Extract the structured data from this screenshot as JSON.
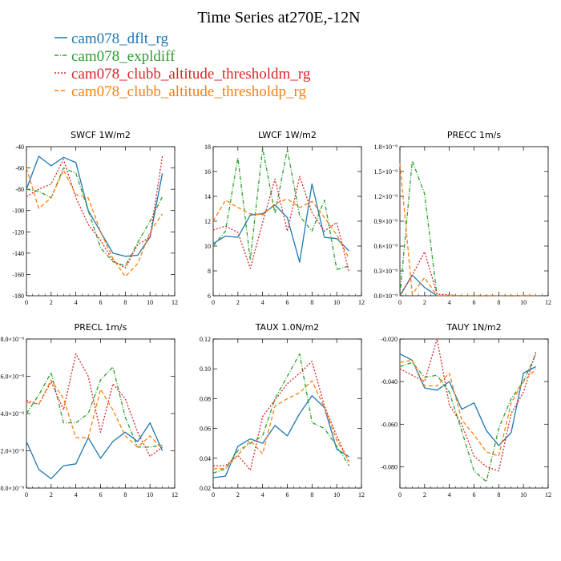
{
  "title": "Time Series at270E,-12N",
  "colors": {
    "dflt": "#1f77b4",
    "expl": "#2ca02c",
    "thm": "#d62728",
    "thp": "#ff7f0e"
  },
  "legend": [
    {
      "label": "cam078_dflt_rg",
      "color": "#1f77b4",
      "dash": "solid"
    },
    {
      "label": "cam078_expldiff",
      "color": "#2ca02c",
      "dash": "dashdot"
    },
    {
      "label": "cam078_clubb_altitude_thresholdm_rg",
      "color": "#d62728",
      "dash": "dotted"
    },
    {
      "label": "cam078_clubb_altitude_thresholdp_rg",
      "color": "#ff7f0e",
      "dash": "dashed"
    }
  ],
  "chart_data": [
    {
      "type": "line",
      "title": "SWCF  1W/m2",
      "x": [
        0,
        1,
        2,
        3,
        4,
        5,
        6,
        7,
        8,
        9,
        10,
        11
      ],
      "xlim": [
        0,
        12
      ],
      "xticks": [
        0,
        2,
        4,
        6,
        8,
        10,
        12
      ],
      "ylim": [
        -180,
        -40
      ],
      "yticks": [
        -180,
        -160,
        -140,
        -120,
        -100,
        -80,
        -60,
        -40
      ],
      "yticklabels": [
        "-180",
        "-160",
        "-140",
        "-120",
        "-100",
        "-80",
        "-60",
        "-40"
      ],
      "series": [
        {
          "name": "cam078_dflt_rg",
          "values": [
            -80,
            -49,
            -58,
            -50,
            -55,
            -100,
            -120,
            -140,
            -143,
            -142,
            -125,
            -65
          ]
        },
        {
          "name": "cam078_expldiff",
          "values": [
            -80,
            -82,
            -88,
            -60,
            -65,
            -100,
            -135,
            -148,
            -152,
            -130,
            -110,
            -87
          ]
        },
        {
          "name": "cam078_clubb_altitude_thresholdm_rg",
          "values": [
            -87,
            -80,
            -75,
            -52,
            -88,
            -113,
            -128,
            -147,
            -154,
            -132,
            -125,
            -49
          ]
        },
        {
          "name": "cam078_clubb_altitude_thresholdp_rg",
          "values": [
            -60,
            -98,
            -88,
            -62,
            -85,
            -88,
            -120,
            -145,
            -162,
            -150,
            -120,
            -103
          ]
        }
      ]
    },
    {
      "type": "line",
      "title": "LWCF  1W/m2",
      "x": [
        0,
        1,
        2,
        3,
        4,
        5,
        6,
        7,
        8,
        9,
        10,
        11
      ],
      "xlim": [
        0,
        12
      ],
      "xticks": [
        0,
        2,
        4,
        6,
        8,
        10,
        12
      ],
      "ylim": [
        6,
        18
      ],
      "yticks": [
        6,
        8,
        10,
        12,
        14,
        16,
        18
      ],
      "yticklabels": [
        "6",
        "8",
        "10",
        "12",
        "14",
        "16",
        "18"
      ],
      "series": [
        {
          "name": "cam078_dflt_rg",
          "values": [
            10.2,
            10.8,
            10.7,
            12.5,
            12.6,
            13.3,
            12.3,
            8.7,
            15.0,
            10.7,
            10.6,
            9.6
          ]
        },
        {
          "name": "cam078_expldiff",
          "values": [
            10.0,
            11.2,
            17.1,
            8.9,
            17.9,
            12.6,
            17.8,
            12.4,
            11.2,
            13.7,
            8.1,
            8.4
          ]
        },
        {
          "name": "cam078_clubb_altitude_thresholdm_rg",
          "values": [
            11.3,
            11.6,
            11.1,
            8.2,
            11.9,
            15.4,
            11.2,
            15.6,
            12.7,
            11.2,
            11.9,
            7.9
          ]
        },
        {
          "name": "cam078_clubb_altitude_thresholdp_rg",
          "values": [
            12.0,
            13.7,
            13.1,
            12.6,
            12.5,
            13.4,
            13.8,
            13.1,
            13.6,
            12.3,
            10.9,
            9.0
          ]
        }
      ]
    },
    {
      "type": "line",
      "title": "PRECC  1m/s",
      "x": [
        0,
        1,
        2,
        3,
        4,
        5,
        6,
        7,
        8,
        9,
        10,
        11
      ],
      "xlim": [
        0,
        12
      ],
      "xticks": [
        0,
        2,
        4,
        6,
        8,
        10,
        12
      ],
      "ylim": [
        0,
        1.8e-09
      ],
      "yticks": [
        0,
        3e-10,
        6e-10,
        9e-10,
        1.2e-09,
        1.5e-09,
        1.8e-09
      ],
      "yticklabels": [
        "0.0×10⁻⁹",
        "0.3×10⁻⁹",
        "0.6×10⁻⁹",
        "0.9×10⁻⁹",
        "1.2×10⁻⁹",
        "1.5×10⁻⁹",
        "1.8×10⁻⁹"
      ],
      "series": [
        {
          "name": "cam078_dflt_rg",
          "values": [
            0,
            2.5e-10,
            1e-10,
            0,
            0,
            0,
            0,
            0,
            0,
            0,
            0,
            0
          ]
        },
        {
          "name": "cam078_expldiff",
          "values": [
            0,
            1.63e-09,
            1.23e-09,
            0,
            0,
            0,
            0,
            0,
            0,
            0,
            0,
            0
          ]
        },
        {
          "name": "cam078_clubb_altitude_thresholdm_rg",
          "values": [
            0,
            2.5e-10,
            5.3e-10,
            2e-11,
            1e-11,
            0,
            0,
            0,
            0,
            0,
            0,
            0
          ]
        },
        {
          "name": "cam078_clubb_altitude_thresholdp_rg",
          "values": [
            1.6e-09,
            2e-11,
            2.2e-10,
            0,
            0,
            0,
            0,
            0,
            0,
            0,
            0,
            0
          ]
        }
      ]
    },
    {
      "type": "line",
      "title": "PRECL  1m/s",
      "x": [
        0,
        1,
        2,
        3,
        4,
        5,
        6,
        7,
        8,
        9,
        10,
        11
      ],
      "xlim": [
        0,
        12
      ],
      "xticks": [
        0,
        2,
        4,
        6,
        8,
        10,
        12
      ],
      "ylim": [
        0,
        8e-09
      ],
      "yticks": [
        0,
        2e-09,
        4e-09,
        6e-09,
        8e-09
      ],
      "yticklabels": [
        "0.0×10⁻⁹",
        "2.0×10⁻⁹",
        "4.0×10⁻⁹",
        "6.0×10⁻⁹",
        "8.0×10⁻⁹"
      ],
      "series": [
        {
          "name": "cam078_dflt_rg",
          "values": [
            2.5e-09,
            1e-09,
            5e-10,
            1.2e-09,
            1.3e-09,
            2.7e-09,
            1.6e-09,
            2.5e-09,
            3e-09,
            2.5e-09,
            3.5e-09,
            2e-09
          ]
        },
        {
          "name": "cam078_expldiff",
          "values": [
            4e-09,
            5e-09,
            6.2e-09,
            3.5e-09,
            3.5e-09,
            4e-09,
            5.8e-09,
            6.5e-09,
            3.8e-09,
            2.2e-09,
            2.2e-09,
            2.3e-09
          ]
        },
        {
          "name": "cam078_clubb_altitude_thresholdm_rg",
          "values": [
            4.7e-09,
            4.5e-09,
            5.7e-09,
            4.2e-09,
            7.2e-09,
            6e-09,
            3e-09,
            5.6e-09,
            4.8e-09,
            3e-09,
            1.7e-09,
            2.2e-09
          ]
        },
        {
          "name": "cam078_clubb_altitude_thresholdp_rg",
          "values": [
            4.6e-09,
            4.5e-09,
            5.8e-09,
            4.8e-09,
            2.7e-09,
            2.7e-09,
            5.3e-09,
            4.2e-09,
            2.8e-09,
            2.2e-09,
            2.8e-09,
            2.1e-09
          ]
        }
      ]
    },
    {
      "type": "line",
      "title": "TAUX  1.0N/m2",
      "x": [
        0,
        1,
        2,
        3,
        4,
        5,
        6,
        7,
        8,
        9,
        10,
        11
      ],
      "xlim": [
        0,
        12
      ],
      "xticks": [
        0,
        2,
        4,
        6,
        8,
        10,
        12
      ],
      "ylim": [
        0.02,
        0.12
      ],
      "yticks": [
        0.02,
        0.04,
        0.06,
        0.08,
        0.1,
        0.12
      ],
      "yticklabels": [
        "0.02",
        "0.04",
        "0.06",
        "0.08",
        "0.10",
        "0.12"
      ],
      "series": [
        {
          "name": "cam078_dflt_rg",
          "values": [
            0.027,
            0.028,
            0.048,
            0.053,
            0.05,
            0.062,
            0.055,
            0.07,
            0.082,
            0.074,
            0.046,
            0.041
          ]
        },
        {
          "name": "cam078_expldiff",
          "values": [
            0.03,
            0.033,
            0.045,
            0.05,
            0.055,
            0.08,
            0.095,
            0.11,
            0.064,
            0.06,
            0.048,
            0.035
          ]
        },
        {
          "name": "cam078_clubb_altitude_thresholdm_rg",
          "values": [
            0.035,
            0.035,
            0.042,
            0.032,
            0.068,
            0.079,
            0.09,
            0.097,
            0.105,
            0.075,
            0.055,
            0.037
          ]
        },
        {
          "name": "cam078_clubb_altitude_thresholdp_rg",
          "values": [
            0.033,
            0.033,
            0.042,
            0.052,
            0.043,
            0.075,
            0.08,
            0.084,
            0.092,
            0.074,
            0.052,
            0.038
          ]
        }
      ]
    },
    {
      "type": "line",
      "title": "TAUY  1N/m2",
      "x": [
        0,
        1,
        2,
        3,
        4,
        5,
        6,
        7,
        8,
        9,
        10,
        11
      ],
      "xlim": [
        0,
        12
      ],
      "xticks": [
        0,
        2,
        4,
        6,
        8,
        10,
        12
      ],
      "ylim": [
        -0.09,
        -0.02
      ],
      "yticks": [
        -0.08,
        -0.06,
        -0.04,
        -0.02
      ],
      "yticklabels": [
        "-0.080",
        "-0.060",
        "-0.040",
        "-0.020"
      ],
      "series": [
        {
          "name": "cam078_dflt_rg",
          "values": [
            -0.027,
            -0.03,
            -0.043,
            -0.044,
            -0.04,
            -0.053,
            -0.05,
            -0.063,
            -0.07,
            -0.064,
            -0.036,
            -0.033
          ]
        },
        {
          "name": "cam078_expldiff",
          "values": [
            -0.033,
            -0.031,
            -0.038,
            -0.037,
            -0.045,
            -0.063,
            -0.082,
            -0.087,
            -0.062,
            -0.048,
            -0.04,
            -0.027
          ]
        },
        {
          "name": "cam078_clubb_altitude_thresholdm_rg",
          "values": [
            -0.034,
            -0.037,
            -0.04,
            -0.02,
            -0.051,
            -0.06,
            -0.075,
            -0.08,
            -0.082,
            -0.055,
            -0.045,
            -0.026
          ]
        },
        {
          "name": "cam078_clubb_altitude_thresholdp_rg",
          "values": [
            -0.031,
            -0.03,
            -0.042,
            -0.042,
            -0.036,
            -0.058,
            -0.065,
            -0.073,
            -0.075,
            -0.05,
            -0.04,
            -0.034
          ]
        }
      ]
    }
  ]
}
